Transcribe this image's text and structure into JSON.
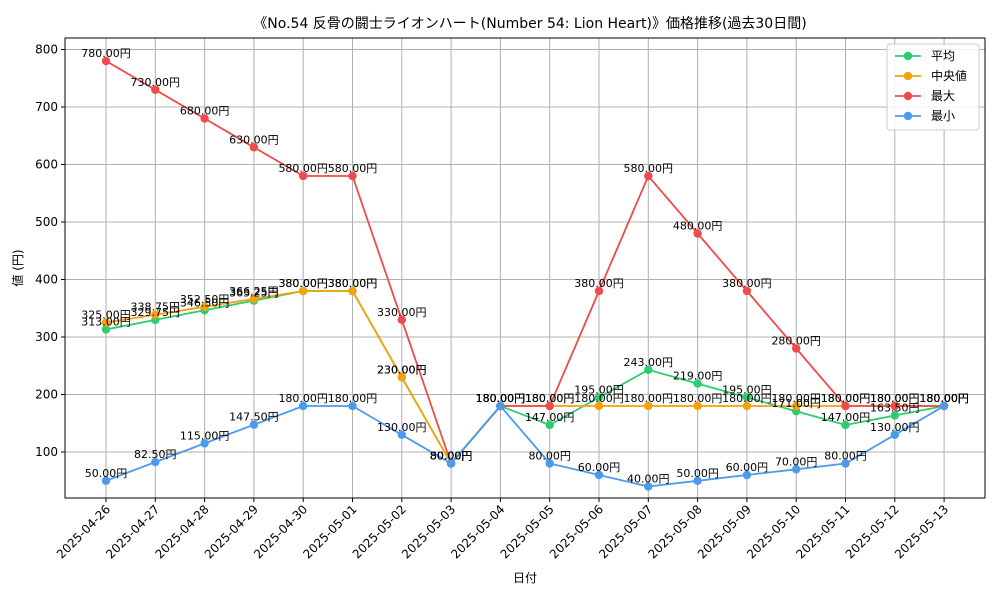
{
  "chart_data": {
    "type": "line",
    "title": "《No.54 反骨の闘士ライオンハート(Number 54: Lion Heart)》価格推移(過去30日間)",
    "xlabel": "日付",
    "ylabel": "値 (円)",
    "ylim": [
      20,
      820
    ],
    "yticks": [
      100,
      200,
      300,
      400,
      500,
      600,
      700,
      800
    ],
    "grid": true,
    "legend_position": "top-right",
    "label_suffix": "円",
    "categories": [
      "2025-04-26",
      "2025-04-27",
      "2025-04-28",
      "2025-04-29",
      "2025-04-30",
      "2025-05-01",
      "2025-05-02",
      "2025-05-03",
      "2025-05-04",
      "2025-05-05",
      "2025-05-06",
      "2025-05-07",
      "2025-05-08",
      "2025-05-09",
      "2025-05-10",
      "2025-05-11",
      "2025-05-12",
      "2025-05-13"
    ],
    "series": [
      {
        "name": "平均",
        "color": "#2ecc71",
        "values": [
          313.0,
          329.75,
          346.5,
          363.25,
          380.0,
          380.0,
          230.0,
          80.0,
          180.0,
          147.0,
          195.0,
          243.0,
          219.0,
          195.0,
          171.0,
          147.0,
          163.5,
          180.0
        ]
      },
      {
        "name": "中央値",
        "color": "#f5a10a",
        "values": [
          325.0,
          338.75,
          352.5,
          366.25,
          380.0,
          380.0,
          230.0,
          80.0,
          180.0,
          180.0,
          180.0,
          180.0,
          180.0,
          180.0,
          180.0,
          180.0,
          180.0,
          180.0
        ]
      },
      {
        "name": "最大",
        "color": "#f04a4a",
        "values": [
          780.0,
          730.0,
          680.0,
          630.0,
          580.0,
          580.0,
          330.0,
          80.0,
          180.0,
          180.0,
          380.0,
          580.0,
          480.0,
          380.0,
          280.0,
          180.0,
          180.0,
          180.0
        ]
      },
      {
        "name": "最小",
        "color": "#4a9af0",
        "values": [
          50.0,
          82.5,
          115.0,
          147.5,
          180.0,
          180.0,
          130.0,
          80.0,
          180.0,
          80.0,
          60.0,
          40.0,
          50.0,
          60.0,
          70.0,
          80.0,
          130.0,
          180.0
        ]
      }
    ]
  }
}
